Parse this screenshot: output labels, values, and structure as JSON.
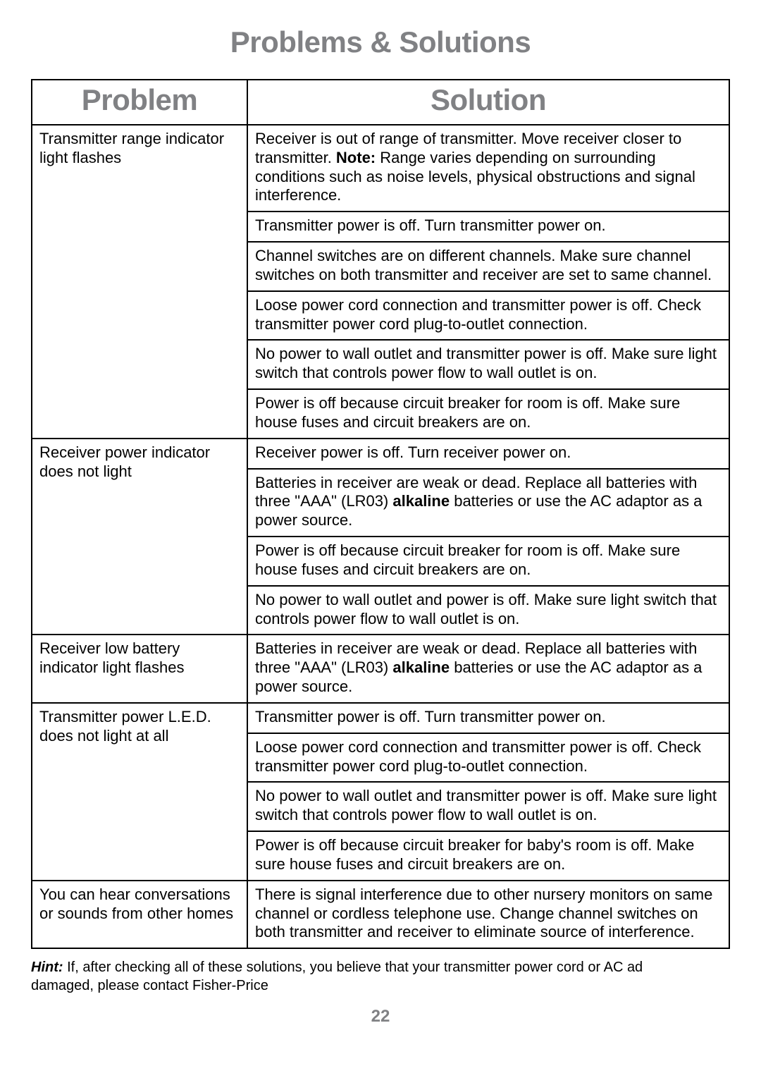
{
  "title": "Problems & Solutions",
  "table": {
    "headers": {
      "problem": "Problem",
      "solution": "Solution"
    },
    "rows": [
      {
        "problem": "Transmitter range indicator light flashes",
        "solutions": [
          {
            "prefix": "Receiver is out of range of transmitter. Move receiver closer to transmitter. ",
            "note_label": "Note:",
            "note_text": " Range varies depending on surrounding conditions such as noise levels, physical obstructions and signal interference."
          },
          {
            "text": "Transmitter power is off. Turn transmitter power on."
          },
          {
            "text": "Channel switches are on different channels. Make sure channel switches on both transmitter and receiver are set to same channel."
          },
          {
            "text": "Loose power cord connection and transmitter power is off. Check transmitter power cord plug-to-outlet connection."
          },
          {
            "text": "No power to wall outlet and transmitter power is off. Make sure light switch that controls power flow to wall outlet is on."
          },
          {
            "text": "Power is off because circuit breaker for room is off. Make sure house fuses and circuit breakers are on."
          }
        ]
      },
      {
        "problem": "Receiver power indicator does not light",
        "solutions": [
          {
            "text": "Receiver power is off. Turn receiver power on."
          },
          {
            "prefix": "Batteries in receiver are weak or dead. Replace all batteries with three \"AAA\" (LR03) ",
            "bold": "alkaline",
            "suffix": " batteries or use the AC adaptor as a power source."
          },
          {
            "text": "Power is off because circuit breaker for room is off. Make sure house fuses and circuit breakers are on."
          },
          {
            "text": "No power to wall outlet and power is off. Make sure light switch that controls power flow to wall outlet is on."
          }
        ]
      },
      {
        "problem": "Receiver low battery indicator light flashes",
        "solutions": [
          {
            "prefix": "Batteries in receiver are weak or dead. Replace all batteries with three \"AAA\" (LR03) ",
            "bold": "alkaline",
            "suffix": " batteries or use the AC adaptor as a power source."
          }
        ]
      },
      {
        "problem": "Transmitter power L.E.D. does not light at all",
        "solutions": [
          {
            "text": "Transmitter power is off. Turn transmitter power on."
          },
          {
            "text": "Loose power cord connection and transmitter power is off. Check transmitter power cord plug-to-outlet connection."
          },
          {
            "text": "No power to wall outlet and transmitter power is off. Make sure light switch that controls power flow to wall outlet is on."
          },
          {
            "text": "Power is off because circuit breaker for baby's room is off. Make sure house fuses and circuit breakers are on."
          }
        ]
      },
      {
        "problem": "You can hear conversations or sounds from other homes",
        "solutions": [
          {
            "text": "There is signal interference due to other nursery monitors on same channel or cordless telephone use. Change channel switches on both transmitter and receiver to eliminate source of interference."
          }
        ]
      }
    ]
  },
  "hint": {
    "label": "Hint:",
    "text": " If, after checking all of these solutions, you believe that your transmitter power cord or AC ad",
    "text2": "damaged, please contact Fisher-Price"
  },
  "page_number": "22"
}
